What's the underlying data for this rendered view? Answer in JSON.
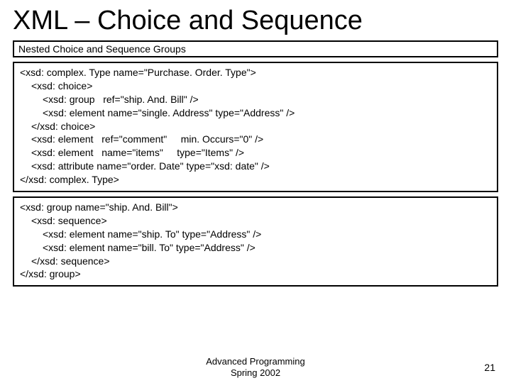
{
  "title": "XML – Choice and Sequence",
  "subtitle": "Nested Choice and Sequence Groups",
  "code1": {
    "l0": "<xsd: complex. Type name=\"Purchase. Order. Type\">",
    "l1": "<xsd: choice>",
    "l2": "<xsd: group   ref=\"ship. And. Bill\" />",
    "l3": "<xsd: element name=\"single. Address\" type=\"Address\" />",
    "l4": "</xsd: choice>",
    "l5": "<xsd: element   ref=\"comment\"     min. Occurs=\"0\" />",
    "l6": "<xsd: element   name=\"items\"     type=\"Items\" />",
    "l7": "<xsd: attribute name=\"order. Date\" type=\"xsd: date\" />",
    "l8": "</xsd: complex. Type>"
  },
  "code2": {
    "l0": "<xsd: group name=\"ship. And. Bill\">",
    "l1": "<xsd: sequence>",
    "l2": "<xsd: element name=\"ship. To\" type=\"Address\" />",
    "l3": "<xsd: element name=\"bill. To\" type=\"Address\" />",
    "l4": "</xsd: sequence>",
    "l5": "</xsd: group>"
  },
  "footer": {
    "line1": "Advanced Programming",
    "line2": "Spring 2002"
  },
  "page_number": "21",
  "colors": {
    "background": "#ffffff",
    "text": "#000000",
    "border": "#000000"
  },
  "typography": {
    "title_fontsize": 38,
    "subtitle_fontsize": 14,
    "code_fontsize": 14,
    "footer_fontsize": 13
  }
}
